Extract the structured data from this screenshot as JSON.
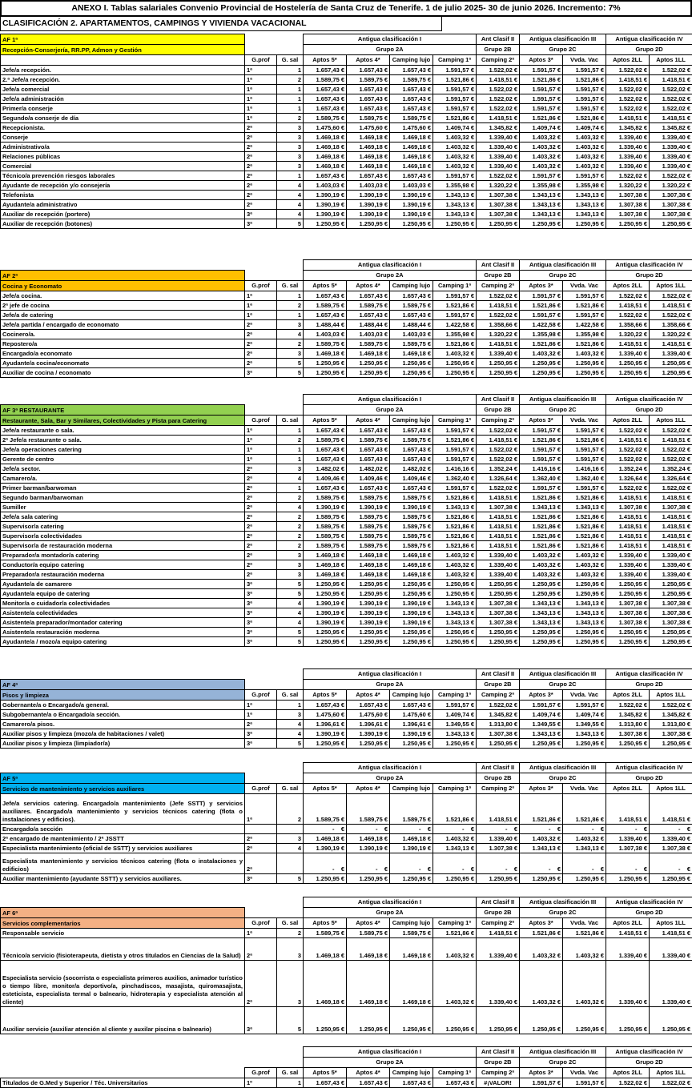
{
  "title": "ANEXO I. Tablas salariales Convenio Provincial de Hostelería de Santa Cruz de Tenerife. 1 de julio 2025- 30 de junio 2026. Incremento: 7%",
  "subtitle": "CLASIFICACIÓN 2. APARTAMENTOS, CAMPINGS Y VIVIENDA VACACIONAL",
  "group_headers": {
    "row1": [
      "Antigua clasificación I",
      "Ant Clasif II",
      "Antigua clasificación III",
      "Antigua clasificación IV"
    ],
    "row2": [
      "Grupo 2A",
      "Grupo 2B",
      "Grupo 2C",
      "Grupo 2D"
    ]
  },
  "columns": {
    "gprof": "G.prof",
    "gsal": "G. sal",
    "values": [
      "Aptos 5*",
      "Aptos 4*",
      "Camping lujo",
      "Camping 1ª",
      "Camping 2ª",
      "Aptos 3*",
      "Vvda. Vac",
      "Aptos 2LL",
      "Aptos 1LL"
    ]
  },
  "value_sets": {
    "A": [
      "1.657,43 €",
      "1.657,43 €",
      "1.657,43 €",
      "1.591,57 €",
      "1.522,02 €",
      "1.591,57 €",
      "1.591,57 €",
      "1.522,02 €",
      "1.522,02 €"
    ],
    "B": [
      "1.589,75 €",
      "1.589,75 €",
      "1.589,75 €",
      "1.521,86 €",
      "1.418,51 €",
      "1.521,86 €",
      "1.521,86 €",
      "1.418,51 €",
      "1.418,51 €"
    ],
    "C": [
      "1.475,60 €",
      "1.475,60 €",
      "1.475,60 €",
      "1.409,74 €",
      "1.345,82 €",
      "1.409,74 €",
      "1.409,74 €",
      "1.345,82 €",
      "1.345,82 €"
    ],
    "D": [
      "1.469,18 €",
      "1.469,18 €",
      "1.469,18 €",
      "1.403,32 €",
      "1.339,40 €",
      "1.403,32 €",
      "1.403,32 €",
      "1.339,40 €",
      "1.339,40 €"
    ],
    "E": [
      "1.403,03 €",
      "1.403,03 €",
      "1.403,03 €",
      "1.355,98 €",
      "1.320,22 €",
      "1.355,98 €",
      "1.355,98 €",
      "1.320,22 €",
      "1.320,22 €"
    ],
    "F": [
      "1.390,19 €",
      "1.390,19 €",
      "1.390,19 €",
      "1.343,13 €",
      "1.307,38 €",
      "1.343,13 €",
      "1.343,13 €",
      "1.307,38 €",
      "1.307,38 €"
    ],
    "G": [
      "1.250,95 €",
      "1.250,95 €",
      "1.250,95 €",
      "1.250,95 €",
      "1.250,95 €",
      "1.250,95 €",
      "1.250,95 €",
      "1.250,95 €",
      "1.250,95 €"
    ],
    "H": [
      "1.488,44 €",
      "1.488,44 €",
      "1.488,44 €",
      "1.422,58 €",
      "1.358,66 €",
      "1.422,58 €",
      "1.422,58 €",
      "1.358,66 €",
      "1.358,66 €"
    ],
    "I": [
      "1.482,02 €",
      "1.482,02 €",
      "1.482,02 €",
      "1.416,16 €",
      "1.352,24 €",
      "1.416,16 €",
      "1.416,16 €",
      "1.352,24 €",
      "1.352,24 €"
    ],
    "J": [
      "1.409,46 €",
      "1.409,46 €",
      "1.409,46 €",
      "1.362,40 €",
      "1.326,64 €",
      "1.362,40 €",
      "1.362,40 €",
      "1.326,64 €",
      "1.326,64 €"
    ],
    "K": [
      "1.396,61 €",
      "1.396,61 €",
      "1.396,61 €",
      "1.349,55 €",
      "1.313,80 €",
      "1.349,55 €",
      "1.349,55 €",
      "1.313,80 €",
      "1.313,80 €"
    ],
    "DASH": [
      "-    €",
      "-    €",
      "-    €",
      "-    €",
      "-    €",
      "-    €",
      "-    €",
      "-    €",
      "-    €"
    ]
  },
  "sections": [
    {
      "id": "af1",
      "variant": "af1",
      "label": "AF 1ª",
      "color": "#FFFF00",
      "subtitle": "Recepción-Conserjería, RR.PP, Admon y Gestión",
      "rows": [
        {
          "title": "Jefe/a recepción.",
          "gprof": "1ª",
          "gsal": "1",
          "vk": "A"
        },
        {
          "title": "2.ª Jefe/a recepción.",
          "gprof": "1ª",
          "gsal": "2",
          "vk": "B"
        },
        {
          "title": "Jefe/a comercial",
          "gprof": "1ª",
          "gsal": "1",
          "vk": "A"
        },
        {
          "title": "Jefe/a administración",
          "gprof": "1ª",
          "gsal": "1",
          "vk": "A"
        },
        {
          "title": "Primer/a conserje",
          "gprof": "1ª",
          "gsal": "1",
          "vk": "A"
        },
        {
          "title": "Segundo/a conserje de día",
          "gprof": "1ª",
          "gsal": "2",
          "vk": "B"
        },
        {
          "title": "Recepcionista.",
          "gprof": "2ª",
          "gsal": "3",
          "vk": "C"
        },
        {
          "title": "Conserje",
          "gprof": "2ª",
          "gsal": "3",
          "vk": "D"
        },
        {
          "title": "Administrativo/a",
          "gprof": "2ª",
          "gsal": "3",
          "vk": "D"
        },
        {
          "title": "Relaciones públicas",
          "gprof": "2ª",
          "gsal": "3",
          "vk": "D"
        },
        {
          "title": "Comercial",
          "gprof": "2ª",
          "gsal": "3",
          "vk": "D"
        },
        {
          "title": "Técnico/a prevención riesgos laborales",
          "gprof": "2ª",
          "gsal": "1",
          "vk": "A"
        },
        {
          "title": "Ayudante de recepción y/o consejería",
          "gprof": "2ª",
          "gsal": "4",
          "vk": "E"
        },
        {
          "title": "Telefonista",
          "gprof": "2ª",
          "gsal": "4",
          "vk": "F"
        },
        {
          "title": "Ayudante/a administrativo",
          "gprof": "2ª",
          "gsal": "4",
          "vk": "F"
        },
        {
          "title": "Auxiliar de recepción (portero)",
          "gprof": "3ª",
          "gsal": "4",
          "vk": "F"
        },
        {
          "title": "Auxiliar de recepción (botones)",
          "gprof": "3ª",
          "gsal": "5",
          "vk": "G"
        }
      ]
    },
    {
      "id": "af2",
      "variant": "std",
      "label": "AF 2ª",
      "color": "#FFC000",
      "subtitle": "Cocina y Economato",
      "rows": [
        {
          "title": "Jefe/a cocina.",
          "gprof": "1ª",
          "gsal": "1",
          "vk": "A"
        },
        {
          "title": "2ª jefe de cocina",
          "gprof": "1ª",
          "gsal": "2",
          "vk": "B"
        },
        {
          "title": "Jefe/a de catering",
          "gprof": "1ª",
          "gsal": "1",
          "vk": "A"
        },
        {
          "title": "Jefe/a partida / encargado de economato",
          "gprof": "2ª",
          "gsal": "3",
          "vk": "H"
        },
        {
          "title": "Cocinero/a.",
          "gprof": "2ª",
          "gsal": "4",
          "vk": "E"
        },
        {
          "title": "Repostero/a",
          "gprof": "2ª",
          "gsal": "2",
          "vk": "B"
        },
        {
          "title": "Encargado/a economato",
          "gprof": "2ª",
          "gsal": "3",
          "vk": "D"
        },
        {
          "title": "Ayudante/a cocina/economato",
          "gprof": "2ª",
          "gsal": "5",
          "vk": "G"
        },
        {
          "title": "Auxiliar de cocina / economato",
          "gprof": "3ª",
          "gsal": "5",
          "vk": "G"
        }
      ]
    },
    {
      "id": "af3",
      "variant": "std",
      "label": "AF 3ª RESTAURANTE",
      "color": "#92D050",
      "subtitle": "Restaurante, Sala, Bar y Similares, Colectividades y Pista para Catering",
      "rows": [
        {
          "title": "Jefe/a restaurante o sala.",
          "gprof": "1ª",
          "gsal": "1",
          "vk": "A"
        },
        {
          "title": "2ª Jefe/a restaurante o sala.",
          "gprof": "1ª",
          "gsal": "2",
          "vk": "B"
        },
        {
          "title": "Jefe/a operaciones catering",
          "gprof": "1ª",
          "gsal": "1",
          "vk": "A"
        },
        {
          "title": "Gerente de centro",
          "gprof": "1ª",
          "gsal": "1",
          "vk": "A"
        },
        {
          "title": "Jefe/a sector.",
          "gprof": "2ª",
          "gsal": "3",
          "vk": "I"
        },
        {
          "title": "Camarero/a.",
          "gprof": "2ª",
          "gsal": "4",
          "vk": "J"
        },
        {
          "title": "Primer barman/barwoman",
          "gprof": "2ª",
          "gsal": "1",
          "vk": "A"
        },
        {
          "title": "Segundo barman/barwoman",
          "gprof": "2ª",
          "gsal": "2",
          "vk": "B"
        },
        {
          "title": "Sumiller",
          "gprof": "2ª",
          "gsal": "4",
          "vk": "F"
        },
        {
          "title": "Jefe/a sala catering",
          "gprof": "2ª",
          "gsal": "2",
          "vk": "B"
        },
        {
          "title": "Supervisor/a catering",
          "gprof": "2ª",
          "gsal": "2",
          "vk": "B"
        },
        {
          "title": "Supervisor/a colectividades",
          "gprof": "2ª",
          "gsal": "2",
          "vk": "B"
        },
        {
          "title": "Supervisor/a de restauración moderna",
          "gprof": "2ª",
          "gsal": "2",
          "vk": "B"
        },
        {
          "title": "Preparador/a montador/a catering",
          "gprof": "2ª",
          "gsal": "3",
          "vk": "D"
        },
        {
          "title": "Conductor/a equipo catering",
          "gprof": "2ª",
          "gsal": "3",
          "vk": "D"
        },
        {
          "title": "Preparador/a restauración moderna",
          "gprof": "2ª",
          "gsal": "3",
          "vk": "D"
        },
        {
          "title": "Ayudante/a de camarero",
          "gprof": "3ª",
          "gsal": "5",
          "vk": "G"
        },
        {
          "title": "Ayudante/a equipo de catering",
          "gprof": "3ª",
          "gsal": "5",
          "vk": "G"
        },
        {
          "title": "Monitor/a o cuidador/a colectividades",
          "gprof": "3ª",
          "gsal": "4",
          "vk": "F"
        },
        {
          "title": "Asistente/a colectividades",
          "gprof": "3ª",
          "gsal": "4",
          "vk": "F"
        },
        {
          "title": "Asistente/a preparador/montador catering",
          "gprof": "3ª",
          "gsal": "4",
          "vk": "F"
        },
        {
          "title": "Asistente/a restauración moderna",
          "gprof": "3ª",
          "gsal": "5",
          "vk": "G"
        },
        {
          "title": "Ayudante/a / mozo/a equipo catering",
          "gprof": "3ª",
          "gsal": "5",
          "vk": "G"
        }
      ]
    },
    {
      "id": "af4",
      "variant": "std",
      "label": "AF 4ª",
      "color": "#95B3D7",
      "subtitle": "Pisos y limpieza",
      "rows": [
        {
          "title": "Gobernante/a o Encargado/a general.",
          "gprof": "1ª",
          "gsal": "1",
          "vk": "A"
        },
        {
          "title": "Subgobernante/a o Encargado/a sección.",
          "gprof": "1ª",
          "gsal": "3",
          "vk": "C"
        },
        {
          "title": "Camarero/a pisos.",
          "gprof": "2ª",
          "gsal": "4",
          "vk": "K"
        },
        {
          "title": "Auxiliar pisos y limpieza (mozo/a de habitaciones / valet)",
          "gprof": "3ª",
          "gsal": "4",
          "vk": "F"
        },
        {
          "title": "Auxiliar pisos y limpieza (limpiador/a)",
          "gprof": "3ª",
          "gsal": "5",
          "vk": "G"
        }
      ]
    },
    {
      "id": "af5",
      "variant": "std",
      "label": "AF 5ª",
      "color": "#00B0F0",
      "subtitle": "Servicios de mantenimiento y servicios auxiliares",
      "rows": [
        {
          "title": "Jefe/a servicios catering. Encargado/a mantenimiento (Jefe SSTT) y servicios auxiliares. Encargado/a mantenimiento y servicios técnicos catering (flota o instalaciones y edificios).",
          "gprof": "1ª",
          "gsal": "2",
          "vk": "B",
          "minh": 38
        },
        {
          "title": "Encargado/a sección",
          "gprof": "",
          "gsal": "",
          "vk": "DASH"
        },
        {
          "title": "2ª encargado de mantenimiento / 2ª JSSTT",
          "gprof": "2ª",
          "gsal": "3",
          "vk": "D"
        },
        {
          "title": "Especialista mantenimiento (oficial de SSTT) y servicios auxiliares",
          "gprof": "2ª",
          "gsal": "4",
          "vk": "F"
        },
        {
          "title": "Especialista mantenimiento y servicios técnicos catering (flota o instalaciones y edificios)",
          "gprof": "2ª",
          "gsal": "",
          "vk": "DASH",
          "minh": 26
        },
        {
          "title": "Auxiliar mantenimiento (ayudante SSTT) y servicios auxiliares.",
          "gprof": "3ª",
          "gsal": "5",
          "vk": "G"
        }
      ]
    },
    {
      "id": "af6",
      "variant": "std",
      "label": "AF 6ª",
      "color": "#F4B084",
      "subtitle": "Servicios complementarios",
      "rows": [
        {
          "title": "Responsable servicio",
          "gprof": "1ª",
          "gsal": "2",
          "vk": "B"
        },
        {
          "title": "Técnico/a servicio (fisioterapeuta, dietista y otros titulados en Ciencias de la Salud)",
          "gprof": "2ª",
          "gsal": "3",
          "vk": "D",
          "minh": 28
        },
        {
          "title": "Especialista servicio (socorrista o especialista primeros auxilios, animador turístico o tiempo libre, monitor/a deportivo/a, pinchadiscos, masajista, quiromasajista, esteticista, especialista termal o balneario, hidroterapia y especialista atención al cliente)",
          "gprof": "2ª",
          "gsal": "3",
          "vk": "D",
          "minh": 58
        },
        {
          "title": "Auxiliar servicio (auxiliar atención al cliente y auxilar piscina o balneario)",
          "gprof": "3ª",
          "gsal": "5",
          "vk": "G",
          "minh": 34
        }
      ]
    },
    {
      "id": "final",
      "variant": "bare",
      "label": "",
      "color": "#FFFFFF",
      "subtitle": "",
      "rows": [
        {
          "title": "Titulados de G.Med y Superior / Téc. Universitarios",
          "gprof": "1º",
          "gsal": "1",
          "values": [
            "1.657,43 €",
            "1.657,43 €",
            "1.657,43 €",
            "1.657,43 €",
            "#¡VALOR!",
            "1.591,57 €",
            "1.591,57 €",
            "1.522,02 €",
            "1.522,02 €"
          ]
        }
      ]
    }
  ]
}
